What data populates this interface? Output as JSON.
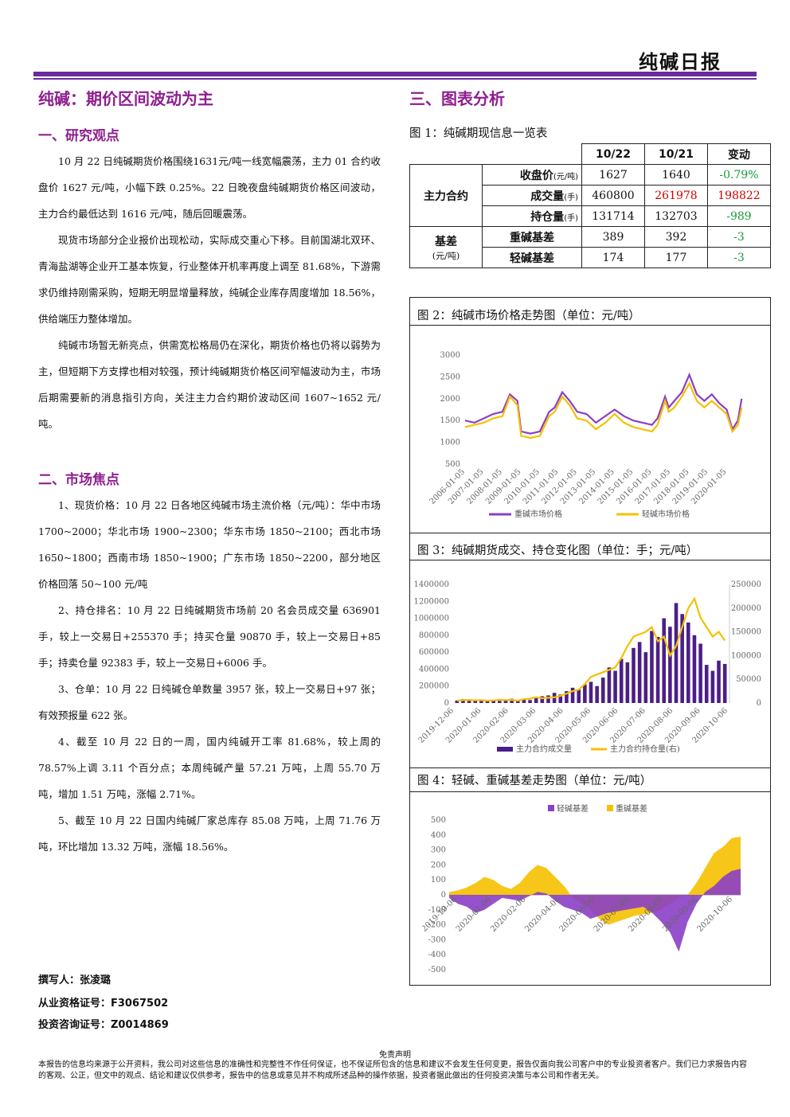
{
  "header": {
    "report_title": "纯碱日报"
  },
  "left": {
    "main_title": "纯碱：期价区间波动为主",
    "sec1_title": "一、研究观点",
    "sec1_paras": [
      "10 月 22 日纯碱期货价格围绕1631元/吨一线宽幅震荡，主力 01 合约收盘价 1627 元/吨，小幅下跌 0.25%。22 日晚夜盘纯碱期货价格区间波动，主力合约最低达到 1616 元/吨，随后回暖震荡。",
      "现货市场部分企业报价出现松动，实际成交重心下移。目前国湖北双环、青海盐湖等企业开工基本恢复，行业整体开机率再度上调至 81.68%，下游需求仍维持刚需采购，短期无明显增量释放，纯碱企业库存周度增加 18.56%，供给端压力整体增加。",
      "纯碱市场暂无新亮点，供需宽松格局仍在深化，期货价格也仍将以弱势为主，但短期下方支撑也相对较强，预计纯碱期货价格区间窄幅波动为主，市场后期需要新的消息指引方向，关注主力合约期价波动区间 1607~1652 元/吨。"
    ],
    "sec2_title": "二、市场焦点",
    "sec2_paras": [
      "1、现货价格：10 月 22 日各地区纯碱市场主流价格（元/吨）：华中市场 1700~2000；华北市场 1900~2300；华东市场 1850~2100；西北市场 1650~1800；西南市场 1850~1900；广东市场 1850~2200，部分地区价格回落 50~100 元/吨",
      "2、持仓排名：10 月 22 日纯碱期货市场前 20 名会员成交量 636901 手，较上一交易日+255370 手；持买仓量 90870 手，较上一交易日+85 手；持卖仓量 92383 手，较上一交易日+6006 手。",
      "3、仓单：10 月 22 日纯碱仓单数量 3957 张，较上一交易日+97 张；有效预报量 622 张。",
      "4、截至 10 月 22 日的一周，国内纯碱开工率 81.68%，较上周的 78.57%上调 3.11 个百分点；本周纯碱产量 57.21 万吨，上周 55.70 万吨，增加 1.51 万吨，涨幅 2.71%。",
      "5、截至 10 月 22 日国内纯碱厂家总库存 85.08 万吨，上周 71.76 万吨，环比增加 13.32 万吨，涨幅 18.56%。"
    ],
    "author": "撰写人：张凌璐",
    "cert1": "从业资格证号：F3067502",
    "cert2": "投资咨询证号：Z0014869"
  },
  "right": {
    "sec3_title": "三、图表分析",
    "fig1_caption": "图 1：纯碱期现信息一览表",
    "table": {
      "h_date1": "10/22",
      "h_date2": "10/21",
      "h_change": "变动",
      "group1": "主力合约",
      "r1_label": "收盘价",
      "r1_unit": "(元/吨)",
      "r1_v1": "1627",
      "r1_v2": "1640",
      "r1_chg": "-0.79%",
      "r2_label": "成交量",
      "r2_unit": "(手)",
      "r2_v1": "460800",
      "r2_v2": "261978",
      "r2_chg": "198822",
      "r3_label": "持仓量",
      "r3_unit": "(手)",
      "r3_v1": "131714",
      "r3_v2": "132703",
      "r3_chg": "-989",
      "group2": "基差",
      "group2_unit": "(元/吨)",
      "r4_label": "重碱基差",
      "r4_v1": "389",
      "r4_v2": "392",
      "r4_chg": "-3",
      "r5_label": "轻碱基差",
      "r5_v1": "174",
      "r5_v2": "177",
      "r5_chg": "-3"
    },
    "fig2_caption": "图 2：纯碱市场价格走势图（单位：元/吨）",
    "fig3_caption": "图 3：纯碱期货成交、持仓变化图（单位：手；元/吨）",
    "fig4_caption": "图 4：轻碱、重碱基差走势图（单位：元/吨）"
  },
  "footer": {
    "disclaimer_title": "免责声明",
    "disclaimer_text": "本报告的信息均来源于公开资料，我公司对这些信息的准确性和完整性不作任何保证，也不保证所包含的信息和建议不会发生任何变更，报告仅面向我公司客户中的专业投资者客户。我们已力求报告内容的客观、公正，但文中的观点、结论和建议仅供参考，报告中的信息或意见并不构成所述品种的操作依据，投资者据此做出的任何投资决策与本公司和作者无关。"
  },
  "chart_data": [
    {
      "type": "line",
      "yticks": [
        "3000",
        "2500",
        "2000",
        "1500",
        "1000",
        "500"
      ],
      "ylim": [
        500,
        3000
      ],
      "xticks": [
        "2006-01-05",
        "2007-01-05",
        "2008-01-05",
        "2009-01-05",
        "2010-01-05",
        "2011-01-05",
        "2012-01-05",
        "2013-01-05",
        "2014-01-05",
        "2015-01-05",
        "2016-01-05",
        "2017-01-05",
        "2018-01-05",
        "2019-01-05",
        "2020-01-05"
      ],
      "colors": [
        "#8b3fc6",
        "#f5c000"
      ],
      "series": [
        {
          "name": "重碱市场价格",
          "x": [
            2006.0,
            2006.5,
            2007.0,
            2007.5,
            2008.0,
            2008.4,
            2008.8,
            2009.0,
            2009.5,
            2010.0,
            2010.5,
            2010.8,
            2011.2,
            2011.6,
            2012.0,
            2012.5,
            2013.0,
            2013.5,
            2014.0,
            2014.5,
            2015.0,
            2015.5,
            2016.0,
            2016.3,
            2016.7,
            2016.9,
            2017.2,
            2017.6,
            2018.0,
            2018.4,
            2018.8,
            2019.2,
            2019.6,
            2020.0,
            2020.3,
            2020.6,
            2020.8
          ],
          "y": [
            1500,
            1450,
            1550,
            1650,
            1700,
            2100,
            1950,
            1250,
            1200,
            1250,
            1700,
            1800,
            2150,
            1950,
            1700,
            1650,
            1450,
            1600,
            1750,
            1600,
            1500,
            1450,
            1400,
            1550,
            2050,
            1800,
            1950,
            2150,
            2550,
            2100,
            1950,
            2100,
            1900,
            1750,
            1300,
            1500,
            2000
          ]
        },
        {
          "name": "轻碱市场价格",
          "x": [
            2006.0,
            2006.5,
            2007.0,
            2007.5,
            2008.0,
            2008.4,
            2008.8,
            2009.0,
            2009.5,
            2010.0,
            2010.5,
            2010.8,
            2011.2,
            2011.6,
            2012.0,
            2012.5,
            2013.0,
            2013.5,
            2014.0,
            2014.5,
            2015.0,
            2015.5,
            2016.0,
            2016.3,
            2016.7,
            2016.9,
            2017.2,
            2017.6,
            2018.0,
            2018.4,
            2018.8,
            2019.2,
            2019.6,
            2020.0,
            2020.3,
            2020.6,
            2020.8
          ],
          "y": [
            1350,
            1400,
            1450,
            1550,
            1600,
            2050,
            1850,
            1150,
            1100,
            1150,
            1600,
            1700,
            2050,
            1850,
            1550,
            1500,
            1300,
            1450,
            1650,
            1450,
            1350,
            1300,
            1250,
            1400,
            1950,
            1700,
            1800,
            2050,
            2350,
            1950,
            1800,
            1950,
            1800,
            1650,
            1250,
            1400,
            1800
          ]
        }
      ]
    },
    {
      "type": "bar",
      "yticks_left": [
        "1400000",
        "1200000",
        "1000000",
        "800000",
        "600000",
        "400000",
        "200000",
        "0"
      ],
      "yticks_right": [
        "250000",
        "200000",
        "150000",
        "100000",
        "50000",
        "0"
      ],
      "ylim_left": [
        0,
        1400000
      ],
      "ylim_right": [
        0,
        250000
      ],
      "xticks": [
        "2019-12-06",
        "2020-01-06",
        "2020-02-06",
        "2020-03-06",
        "2020-04-06",
        "2020-05-06",
        "2020-06-06",
        "2020-07-06",
        "2020-08-06",
        "2020-09-06",
        "2020-10-06"
      ],
      "colors": [
        "#4b1f87",
        "#f5c000"
      ],
      "series": [
        {
          "name": "主力合约成交量",
          "values": [
            30000,
            45000,
            25000,
            40000,
            35000,
            20000,
            30000,
            25000,
            40000,
            50000,
            30000,
            40000,
            35000,
            60000,
            80000,
            90000,
            120000,
            100000,
            140000,
            180000,
            160000,
            220000,
            250000,
            200000,
            300000,
            420000,
            380000,
            520000,
            480000,
            650000,
            720000,
            600000,
            850000,
            780000,
            1000000,
            900000,
            1180000,
            1050000,
            950000,
            800000,
            700000,
            450000,
            380000,
            500000,
            460800
          ]
        },
        {
          "name": "主力合约持仓量(右)",
          "values": [
            5000,
            6000,
            6500,
            5500,
            6000,
            5000,
            5500,
            7000,
            6000,
            6500,
            5000,
            8000,
            9000,
            12000,
            10000,
            11000,
            12000,
            15000,
            20000,
            25000,
            28000,
            40000,
            55000,
            60000,
            65000,
            70000,
            75000,
            95000,
            120000,
            140000,
            145000,
            150000,
            160000,
            130000,
            140000,
            100000,
            120000,
            160000,
            200000,
            220000,
            180000,
            160000,
            140000,
            150000,
            131714
          ]
        }
      ]
    },
    {
      "type": "area",
      "yticks": [
        "500",
        "400",
        "300",
        "200",
        "100",
        "0",
        "-100",
        "-200",
        "-300",
        "-400",
        "-500"
      ],
      "ylim": [
        -500,
        500
      ],
      "xticks": [
        "2019-10-06",
        "2020-01-06",
        "2020-02-06",
        "2020-04-06",
        "2020-06-06",
        "2020-07-06",
        "2020-08-06",
        "2020-09-06",
        "2020-10-06"
      ],
      "colors": [
        "#8b3fc6",
        "#f5c000"
      ],
      "series": [
        {
          "name": "轻碱基差",
          "values": [
            -20,
            -60,
            -80,
            -120,
            -100,
            -60,
            -20,
            -30,
            -40,
            -10,
            20,
            10,
            -40,
            -80,
            -100,
            -120,
            -160,
            -140,
            -120,
            -110,
            -100,
            -90,
            -80,
            -120,
            -180,
            -250,
            -380,
            -180,
            -60,
            20,
            60,
            120,
            160,
            174
          ]
        },
        {
          "name": "重碱基差",
          "values": [
            20,
            30,
            50,
            80,
            120,
            100,
            60,
            40,
            80,
            150,
            200,
            180,
            120,
            60,
            -20,
            -60,
            -100,
            -160,
            -200,
            -180,
            -160,
            -140,
            -130,
            -120,
            -100,
            -60,
            -20,
            0,
            80,
            180,
            280,
            320,
            380,
            389
          ]
        }
      ]
    }
  ]
}
